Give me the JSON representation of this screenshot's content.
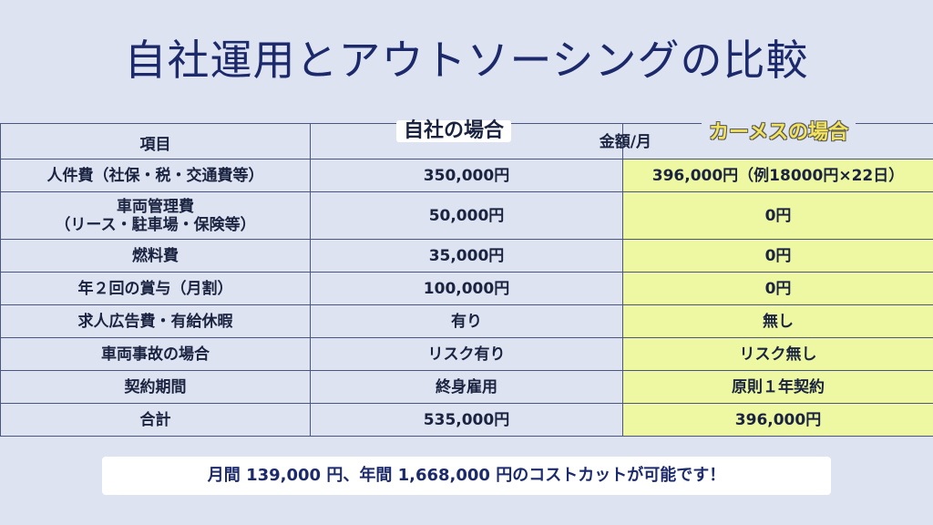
{
  "title": "自社運用とアウトソーシングの比較",
  "table": {
    "header": {
      "item": "項目",
      "own": "自社の場合",
      "unit": "金額/月",
      "outsource": "カーメスの場合"
    },
    "rows": [
      {
        "item": "人件費（社保・税・交通費等）",
        "own": "350,000円",
        "outsource": "396,000円（例18000円×22日）"
      },
      {
        "item_line1": "車両管理費",
        "item_line2": "（リース・駐車場・保険等）",
        "own": "50,000円",
        "outsource": "0円"
      },
      {
        "item": "燃料費",
        "own": "35,000円",
        "outsource": "0円"
      },
      {
        "item": "年２回の賞与（月割）",
        "own": "100,000円",
        "outsource": "0円"
      },
      {
        "item": "求人広告費・有給休暇",
        "own": "有り",
        "outsource": "無し"
      },
      {
        "item": "車両事故の場合",
        "own": "リスク有り",
        "outsource": "リスク無し"
      },
      {
        "item": "契約期間",
        "own": "終身雇用",
        "outsource": "原則１年契約"
      },
      {
        "item": "合計",
        "own": "535,000円",
        "outsource": "396,000円"
      }
    ]
  },
  "banner": "月間 139,000 円、年間 1,668,000 円のコストカットが可能です！",
  "colors": {
    "background": "#dde3f1",
    "title": "#1c2a6b",
    "highlight_column": "#eef8a2",
    "outsource_label": "#f2e35a"
  }
}
